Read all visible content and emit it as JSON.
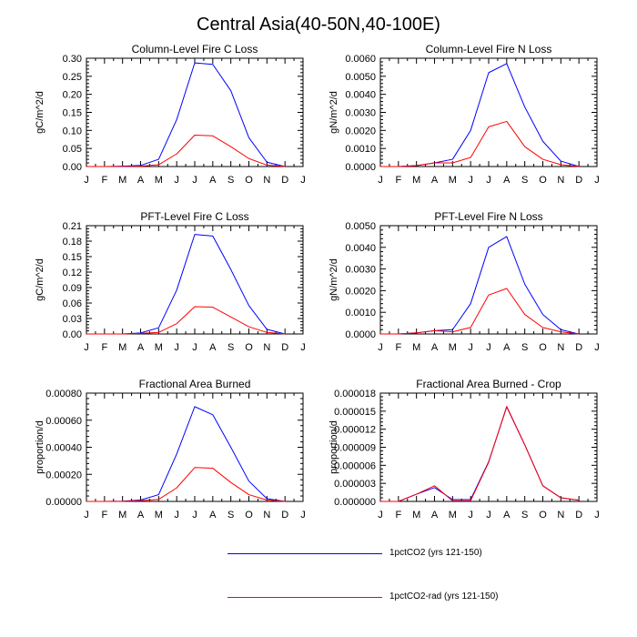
{
  "figure_title": "Central Asia(40-50N,40-100E)",
  "x_tick_labels": [
    "J",
    "F",
    "M",
    "A",
    "M",
    "J",
    "J",
    "A",
    "S",
    "O",
    "N",
    "D",
    "J"
  ],
  "colors": {
    "1pctCO2": "#0000ff",
    "1pctCO2-rad": "#ff0000"
  },
  "legend": [
    {
      "label": "1pctCO2 (yrs 121-150)",
      "color": "#0000ff"
    },
    {
      "label": "1pctCO2-rad (yrs 121-150)",
      "color": "#ff0000"
    }
  ],
  "chart_data": [
    {
      "type": "line",
      "title": "Column-Level Fire C Loss",
      "ylabel": "gC/m^2/d",
      "ylim": [
        0,
        0.3
      ],
      "yticks": [
        "0.00",
        "0.05",
        "0.10",
        "0.15",
        "0.20",
        "0.25",
        "0.30"
      ],
      "x": [
        "J",
        "F",
        "M",
        "A",
        "M",
        "J",
        "J",
        "A",
        "S",
        "O",
        "N",
        "D"
      ],
      "series": [
        {
          "name": "1pctCO2 (yrs 121-150)",
          "values": [
            0.0,
            0.0,
            0.001,
            0.003,
            0.02,
            0.13,
            0.287,
            0.283,
            0.21,
            0.08,
            0.012,
            0.0
          ]
        },
        {
          "name": "1pctCO2-rad (yrs 121-150)",
          "values": [
            0.0,
            0.0,
            0.0,
            0.001,
            0.005,
            0.035,
            0.087,
            0.085,
            0.055,
            0.022,
            0.004,
            0.0
          ]
        }
      ]
    },
    {
      "type": "line",
      "title": "Column-Level Fire N Loss",
      "ylabel": "gN/m^2/d",
      "ylim": [
        0,
        0.006
      ],
      "yticks": [
        "0.0000",
        "0.0010",
        "0.0020",
        "0.0030",
        "0.0040",
        "0.0050",
        "0.0060"
      ],
      "x": [
        "J",
        "F",
        "M",
        "A",
        "M",
        "J",
        "J",
        "A",
        "S",
        "O",
        "N",
        "D"
      ],
      "series": [
        {
          "name": "1pctCO2 (yrs 121-150)",
          "values": [
            0.0,
            0.0,
            5e-05,
            0.0002,
            0.0004,
            0.002,
            0.0052,
            0.0057,
            0.0033,
            0.0014,
            0.0003,
            0.0
          ]
        },
        {
          "name": "1pctCO2-rad (yrs 121-150)",
          "values": [
            0.0,
            0.0,
            5e-05,
            0.0002,
            0.0002,
            0.0005,
            0.0022,
            0.0025,
            0.0011,
            0.0004,
            0.0001,
            0.0
          ]
        }
      ]
    },
    {
      "type": "line",
      "title": "PFT-Level Fire C Loss",
      "ylabel": "gC/m^2/d",
      "ylim": [
        0,
        0.21
      ],
      "yticks": [
        "0.00",
        "0.03",
        "0.06",
        "0.09",
        "0.12",
        "0.15",
        "0.18",
        "0.21"
      ],
      "x": [
        "J",
        "F",
        "M",
        "A",
        "M",
        "J",
        "J",
        "A",
        "S",
        "O",
        "N",
        "D"
      ],
      "series": [
        {
          "name": "1pctCO2 (yrs 121-150)",
          "values": [
            0.0,
            0.0,
            0.0,
            0.002,
            0.012,
            0.085,
            0.193,
            0.19,
            0.125,
            0.055,
            0.009,
            0.0
          ]
        },
        {
          "name": "1pctCO2-rad (yrs 121-150)",
          "values": [
            0.0,
            0.0,
            0.0,
            0.001,
            0.003,
            0.02,
            0.053,
            0.052,
            0.033,
            0.014,
            0.003,
            0.0
          ]
        }
      ]
    },
    {
      "type": "line",
      "title": "PFT-Level Fire N Loss",
      "ylabel": "gN/m^2/d",
      "ylim": [
        0,
        0.005
      ],
      "yticks": [
        "0.0000",
        "0.0010",
        "0.0020",
        "0.0030",
        "0.0040",
        "0.0050"
      ],
      "x": [
        "J",
        "F",
        "M",
        "A",
        "M",
        "J",
        "J",
        "A",
        "S",
        "O",
        "N",
        "D"
      ],
      "series": [
        {
          "name": "1pctCO2 (yrs 121-150)",
          "values": [
            0.0,
            0.0,
            5e-05,
            0.00015,
            0.0002,
            0.0014,
            0.004,
            0.0045,
            0.0023,
            0.0009,
            0.0002,
            0.0
          ]
        },
        {
          "name": "1pctCO2-rad (yrs 121-150)",
          "values": [
            0.0,
            0.0,
            5e-05,
            0.00015,
            0.0001,
            0.0003,
            0.0018,
            0.0021,
            0.0009,
            0.0003,
            0.0001,
            0.0
          ]
        }
      ]
    },
    {
      "type": "line",
      "title": "Fractional Area Burned",
      "ylabel": "proportion/d",
      "ylim": [
        0,
        0.0008
      ],
      "yticks": [
        "0.00000",
        "0.00020",
        "0.00040",
        "0.00060",
        "0.00080"
      ],
      "x": [
        "J",
        "F",
        "M",
        "A",
        "M",
        "J",
        "J",
        "A",
        "S",
        "O",
        "N",
        "D"
      ],
      "series": [
        {
          "name": "1pctCO2 (yrs 121-150)",
          "values": [
            0.0,
            0.0,
            2e-06,
            1e-05,
            5e-05,
            0.00035,
            0.0007,
            0.00064,
            0.0004,
            0.00015,
            2e-05,
            0.0
          ]
        },
        {
          "name": "1pctCO2-rad (yrs 121-150)",
          "values": [
            0.0,
            0.0,
            0.0,
            5e-06,
            1.5e-05,
            0.0001,
            0.00025,
            0.000245,
            0.00014,
            5e-05,
            1e-05,
            0.0
          ]
        }
      ]
    },
    {
      "type": "line",
      "title": "Fractional Area Burned - Crop",
      "ylabel": "proportion/d",
      "ylim": [
        0,
        1.8e-05
      ],
      "yticks": [
        "0.000000",
        "0.000003",
        "0.000006",
        "0.000009",
        "0.000012",
        "0.000015",
        "0.000018"
      ],
      "x": [
        "J",
        "F",
        "M",
        "A",
        "M",
        "J",
        "J",
        "A",
        "S",
        "O",
        "N",
        "D"
      ],
      "series": [
        {
          "name": "1pctCO2 (yrs 121-150)",
          "values": [
            0.0,
            0.0,
            1.2e-06,
            2.3e-06,
            3e-07,
            3e-07,
            6.6e-06,
            1.57e-05,
            9.4e-06,
            2.6e-06,
            6e-07,
            2e-07
          ]
        },
        {
          "name": "1pctCO2-rad (yrs 121-150)",
          "values": [
            0.0,
            0.0,
            1.2e-06,
            2.6e-06,
            1e-07,
            1e-07,
            6.5e-06,
            1.58e-05,
            9.4e-06,
            2.6e-06,
            6e-07,
            2e-07
          ]
        }
      ]
    }
  ]
}
